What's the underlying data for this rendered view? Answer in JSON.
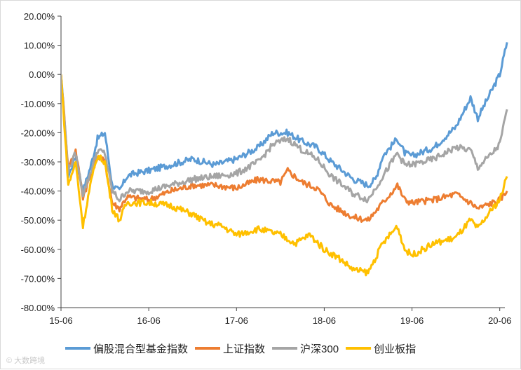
{
  "chart_data": {
    "type": "line",
    "title": "",
    "xlabel": "",
    "ylabel": "",
    "ylim": [
      -80,
      20
    ],
    "y_ticks": [
      20,
      10,
      0,
      -10,
      -20,
      -30,
      -40,
      -50,
      -60,
      -70,
      -80
    ],
    "y_tick_labels": [
      "20.00%",
      "10.00%",
      "0.00%",
      "-10.00%",
      "-20.00%",
      "-30.00%",
      "-40.00%",
      "-50.00%",
      "-60.00%",
      "-70.00%",
      "-80.00%"
    ],
    "x_range": [
      "2015-06",
      "2020-06"
    ],
    "x_ticks": [
      "2015-06",
      "2016-06",
      "2017-06",
      "2018-06",
      "2019-06",
      "2020-06"
    ],
    "x_tick_labels": [
      "15-06",
      "16-06",
      "17-06",
      "18-06",
      "19-06",
      "20-06"
    ],
    "grid": false,
    "legend_position": "bottom",
    "series": [
      {
        "name": "偏股混合型基金指数",
        "color": "#5b9bd5",
        "points": [
          [
            "2015-06",
            0
          ],
          [
            "2015-07",
            -35
          ],
          [
            "2015-08",
            -28
          ],
          [
            "2015-09",
            -40
          ],
          [
            "2015-10",
            -32
          ],
          [
            "2015-11",
            -22
          ],
          [
            "2015-12",
            -20
          ],
          [
            "2016-01",
            -38
          ],
          [
            "2016-02",
            -40
          ],
          [
            "2016-03",
            -35
          ],
          [
            "2016-04",
            -34
          ],
          [
            "2016-06",
            -33
          ],
          [
            "2016-09",
            -31
          ],
          [
            "2016-12",
            -29
          ],
          [
            "2017-03",
            -31
          ],
          [
            "2017-06",
            -29
          ],
          [
            "2017-09",
            -25
          ],
          [
            "2017-11",
            -20
          ],
          [
            "2018-01",
            -20
          ],
          [
            "2018-03",
            -23
          ],
          [
            "2018-05",
            -25
          ],
          [
            "2018-07",
            -30
          ],
          [
            "2018-10",
            -36
          ],
          [
            "2018-12",
            -38
          ],
          [
            "2019-01",
            -36
          ],
          [
            "2019-02",
            -28
          ],
          [
            "2019-04",
            -22
          ],
          [
            "2019-05",
            -27
          ],
          [
            "2019-06",
            -28
          ],
          [
            "2019-09",
            -25
          ],
          [
            "2019-12",
            -18
          ],
          [
            "2020-02",
            -8
          ],
          [
            "2020-03",
            -15
          ],
          [
            "2020-05",
            -5
          ],
          [
            "2020-06",
            0
          ],
          [
            "2020-07",
            11
          ]
        ]
      },
      {
        "name": "上证指数",
        "color": "#ed7d31",
        "points": [
          [
            "2015-06",
            0
          ],
          [
            "2015-07",
            -32
          ],
          [
            "2015-08",
            -26
          ],
          [
            "2015-09",
            -42
          ],
          [
            "2015-10",
            -35
          ],
          [
            "2015-11",
            -28
          ],
          [
            "2015-12",
            -30
          ],
          [
            "2016-01",
            -44
          ],
          [
            "2016-02",
            -46
          ],
          [
            "2016-03",
            -42
          ],
          [
            "2016-06",
            -43
          ],
          [
            "2016-09",
            -40
          ],
          [
            "2016-12",
            -38
          ],
          [
            "2017-03",
            -38
          ],
          [
            "2017-06",
            -39
          ],
          [
            "2017-09",
            -36
          ],
          [
            "2017-12",
            -37
          ],
          [
            "2018-01",
            -33
          ],
          [
            "2018-03",
            -37
          ],
          [
            "2018-05",
            -39
          ],
          [
            "2018-07",
            -45
          ],
          [
            "2018-10",
            -49
          ],
          [
            "2018-12",
            -50
          ],
          [
            "2019-02",
            -44
          ],
          [
            "2019-04",
            -38
          ],
          [
            "2019-05",
            -43
          ],
          [
            "2019-06",
            -44
          ],
          [
            "2019-09",
            -43
          ],
          [
            "2019-12",
            -41
          ],
          [
            "2020-02",
            -44
          ],
          [
            "2020-03",
            -46
          ],
          [
            "2020-05",
            -44
          ],
          [
            "2020-06",
            -43
          ],
          [
            "2020-07",
            -40
          ]
        ]
      },
      {
        "name": "沪深300",
        "color": "#a5a5a5",
        "points": [
          [
            "2015-06",
            0
          ],
          [
            "2015-07",
            -33
          ],
          [
            "2015-08",
            -27
          ],
          [
            "2015-09",
            -41
          ],
          [
            "2015-10",
            -34
          ],
          [
            "2015-11",
            -26
          ],
          [
            "2015-12",
            -27
          ],
          [
            "2016-01",
            -40
          ],
          [
            "2016-02",
            -43
          ],
          [
            "2016-03",
            -40
          ],
          [
            "2016-06",
            -40
          ],
          [
            "2016-09",
            -38
          ],
          [
            "2016-12",
            -36
          ],
          [
            "2017-03",
            -35
          ],
          [
            "2017-06",
            -34
          ],
          [
            "2017-09",
            -30
          ],
          [
            "2017-11",
            -24
          ],
          [
            "2018-01",
            -22
          ],
          [
            "2018-03",
            -26
          ],
          [
            "2018-05",
            -29
          ],
          [
            "2018-07",
            -35
          ],
          [
            "2018-10",
            -41
          ],
          [
            "2018-12",
            -43
          ],
          [
            "2019-02",
            -35
          ],
          [
            "2019-04",
            -27
          ],
          [
            "2019-05",
            -31
          ],
          [
            "2019-06",
            -31
          ],
          [
            "2019-09",
            -29
          ],
          [
            "2019-12",
            -25
          ],
          [
            "2020-02",
            -26
          ],
          [
            "2020-03",
            -32
          ],
          [
            "2020-05",
            -27
          ],
          [
            "2020-06",
            -24
          ],
          [
            "2020-07",
            -12
          ]
        ]
      },
      {
        "name": "创业板指",
        "color": "#ffc000",
        "points": [
          [
            "2015-06",
            0
          ],
          [
            "2015-07",
            -38
          ],
          [
            "2015-08",
            -30
          ],
          [
            "2015-09",
            -52
          ],
          [
            "2015-10",
            -38
          ],
          [
            "2015-11",
            -28
          ],
          [
            "2015-12",
            -30
          ],
          [
            "2016-01",
            -46
          ],
          [
            "2016-02",
            -50
          ],
          [
            "2016-03",
            -44
          ],
          [
            "2016-06",
            -44
          ],
          [
            "2016-09",
            -45
          ],
          [
            "2016-12",
            -48
          ],
          [
            "2017-02",
            -51
          ],
          [
            "2017-04",
            -52
          ],
          [
            "2017-06",
            -55
          ],
          [
            "2017-09",
            -53
          ],
          [
            "2017-12",
            -55
          ],
          [
            "2018-02",
            -58
          ],
          [
            "2018-04",
            -55
          ],
          [
            "2018-06",
            -60
          ],
          [
            "2018-08",
            -63
          ],
          [
            "2018-10",
            -67
          ],
          [
            "2018-12",
            -68
          ],
          [
            "2019-02",
            -58
          ],
          [
            "2019-04",
            -52
          ],
          [
            "2019-05",
            -60
          ],
          [
            "2019-06",
            -62
          ],
          [
            "2019-09",
            -58
          ],
          [
            "2019-12",
            -56
          ],
          [
            "2020-02",
            -50
          ],
          [
            "2020-03",
            -53
          ],
          [
            "2020-05",
            -46
          ],
          [
            "2020-06",
            -43
          ],
          [
            "2020-07",
            -35
          ]
        ]
      }
    ]
  },
  "watermark": "© 大数跨境"
}
